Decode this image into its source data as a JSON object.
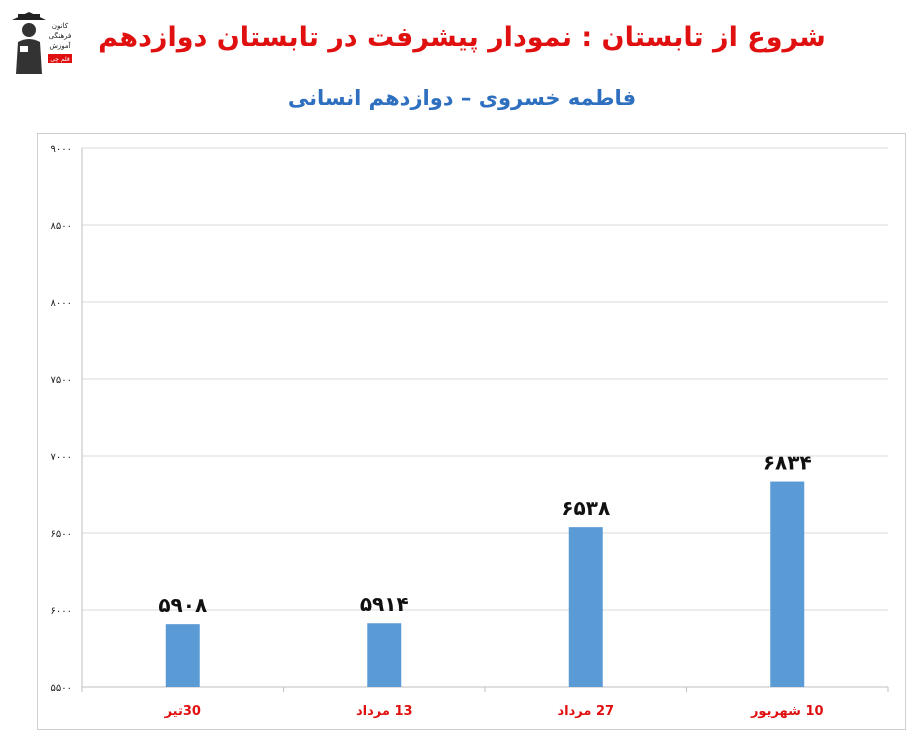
{
  "header": {
    "title": "شروع از تابستان : نمودار پیشرفت در تابستان دوازدهم",
    "subtitle": "فاطمه خسروی – دوازدهم انسانی",
    "logo_text": [
      "کانون",
      "فرهنگی",
      "آموزش",
      "قلم چی"
    ]
  },
  "chart_data": {
    "type": "bar",
    "title": "",
    "xlabel": "",
    "ylabel": "",
    "categories": [
      "30تیر",
      "13 مرداد",
      "27 مرداد",
      "10 شهریور"
    ],
    "values": [
      5908,
      5914,
      6538,
      6834
    ],
    "value_labels": [
      "۵۹۰۸",
      "۵۹۱۴",
      "۶۵۳۸",
      "۶۸۳۴"
    ],
    "ylim": [
      5500,
      9000
    ],
    "yticks": [
      5500,
      6000,
      6500,
      7000,
      7500,
      8000,
      8500,
      9000
    ],
    "ytick_labels": [
      "۵۵۰۰",
      "۶۰۰۰",
      "۶۵۰۰",
      "۷۰۰۰",
      "۷۵۰۰",
      "۸۰۰۰",
      "۸۵۰۰",
      "۹۰۰۰"
    ],
    "grid": true,
    "bar_color": "#5b9bd5",
    "category_label_color": "#e01010"
  }
}
